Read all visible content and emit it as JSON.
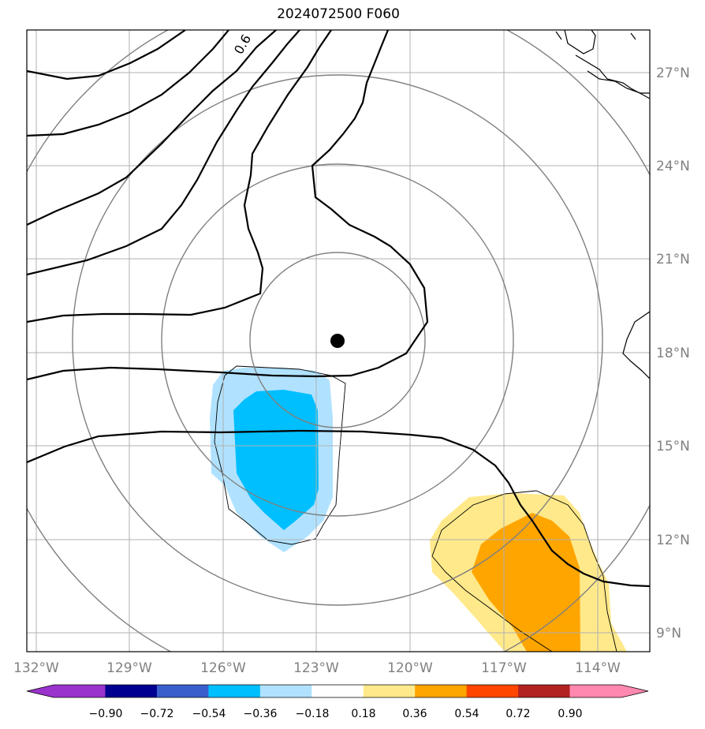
{
  "title": "2024072500 F060",
  "map": {
    "lon_labels": [
      "132°W",
      "129°W",
      "126°W",
      "123°W",
      "120°W",
      "117°W",
      "114°W"
    ],
    "lat_labels": [
      "27°N",
      "24°N",
      "21°N",
      "18°N",
      "15°N",
      "12°N",
      "9°N"
    ],
    "contour_label": "0.6",
    "center_marker": "storm-center-dot",
    "colors": {
      "frame": "#000000",
      "gridline": "#b0b0b0",
      "range_ring": "#808080",
      "contour": "#000000"
    }
  },
  "colorbar": {
    "labels": [
      "−0.90",
      "−0.72",
      "−0.54",
      "−0.36",
      "−0.18",
      "0.18",
      "0.36",
      "0.54",
      "0.72",
      "0.90"
    ],
    "colors": [
      "#9933cc",
      "#9933cc",
      "#000090",
      "#3a5fcd",
      "#00bfff",
      "#b0e2ff",
      "#ffffff",
      "#ffe98a",
      "#ffa500",
      "#ff4500",
      "#b22222",
      "#ff88b0",
      "#ff88b0"
    ]
  }
}
